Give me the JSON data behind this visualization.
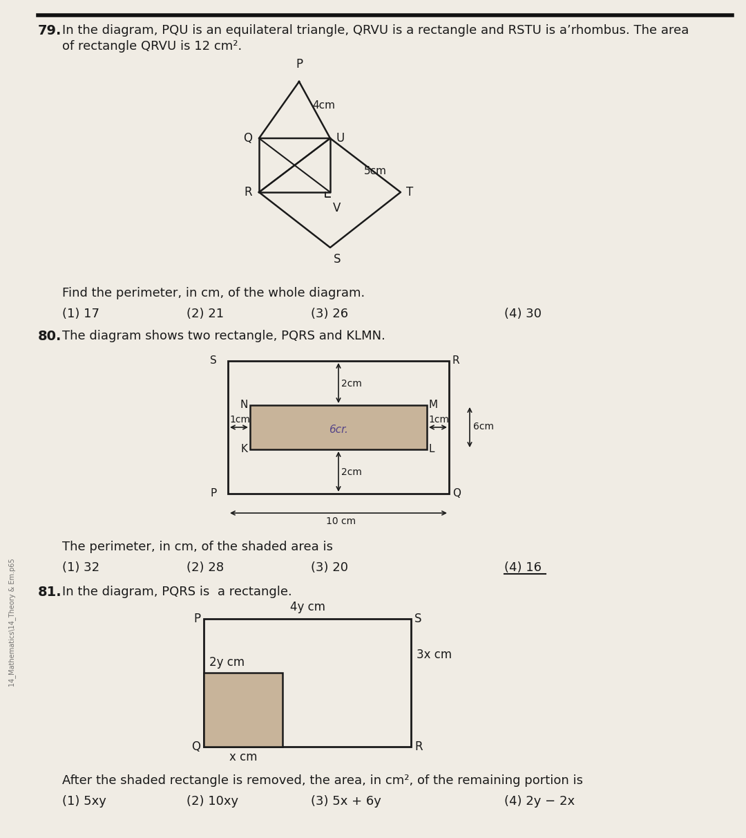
{
  "bg_color": "#f0ece4",
  "q79_num": "79.",
  "q79_line1": "In the diagram, PQU is an equilateral triangle, QRVU is a rectangle and RSTU is a’rhombus. The area",
  "q79_line2": "of rectangle QRVU is 12 cm².",
  "q79_find": "Find the perimeter, in cm, of the whole diagram.",
  "q79_opts": [
    "(1) 17",
    "(2) 21",
    "(3) 26",
    "(4) 30"
  ],
  "q80_num": "80.",
  "q80_text": "The diagram shows two rectangle, PQRS and KLMN.",
  "q80_question": "The perimeter, in cm, of the shaded area is",
  "q80_opts": [
    "(1) 32",
    "(2) 28",
    "(3) 20",
    "(4) 16"
  ],
  "q81_num": "81.",
  "q81_text": "In the diagram, PQRS is  a rectangle.",
  "q81_question": "After the shaded rectangle is removed, the area, in cm², of the remaining portion is",
  "q81_opts": [
    "(1) 5xy",
    "(2) 10xy",
    "(3) 5x + 6y",
    "(4) 2y − 2x"
  ],
  "watermark": "14_Mathematics\\14_Theory & Em.p65",
  "shade_color": "#c8b49a",
  "line_color": "#1a1a1a"
}
